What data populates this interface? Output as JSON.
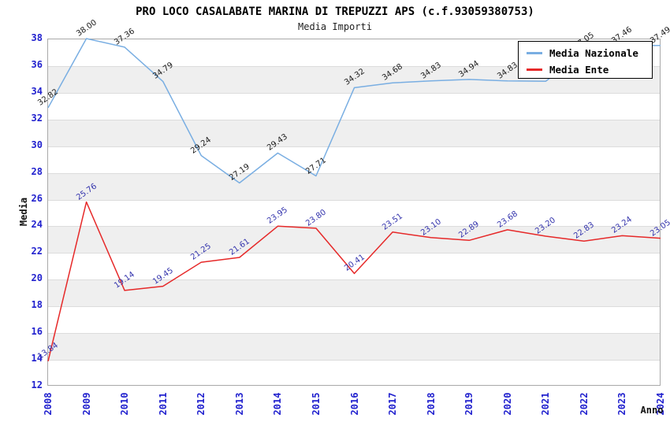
{
  "header": {
    "title": "PRO LOCO CASALABATE MARINA DI TREPUZZI APS (c.f.93059380753)",
    "subtitle": "Media Importi"
  },
  "legend": {
    "position": "top-right",
    "items": [
      {
        "label": "Media Nazionale",
        "color": "#79aee2"
      },
      {
        "label": "Media Ente",
        "color": "#e62929"
      }
    ]
  },
  "axes": {
    "y_title": "Media",
    "x_title": "Anno",
    "y_min": 12,
    "y_max": 38,
    "y_step": 2,
    "tick_color": "#2121ce"
  },
  "chart_data": {
    "type": "line",
    "title": "PRO LOCO CASALABATE MARINA DI TREPUZZI APS (c.f.93059380753)",
    "subtitle": "Media Importi",
    "xlabel": "Anno",
    "ylabel": "Media",
    "ylim": [
      12,
      38
    ],
    "grid": "horizontal gridlines every 2 units with alternating light-gray bands",
    "legend_position": "top-right",
    "x": [
      2008,
      2009,
      2010,
      2011,
      2012,
      2013,
      2014,
      2015,
      2016,
      2017,
      2018,
      2019,
      2020,
      2021,
      2022,
      2023,
      2024
    ],
    "series": [
      {
        "name": "Media Nazionale",
        "color": "#79aee2",
        "label_color": "#1a1a1a",
        "values": [
          32.82,
          38.0,
          37.36,
          34.79,
          29.24,
          27.19,
          29.43,
          27.71,
          34.32,
          34.68,
          34.83,
          34.94,
          34.83,
          34.8,
          37.05,
          37.46,
          37.49
        ],
        "point_labels": [
          "32.82",
          "38.00",
          "37.36",
          "34.79",
          "29.24",
          "27.19",
          "29.43",
          "27.71",
          "34.32",
          "34.68",
          "34.83",
          "34.94",
          "34.83",
          "",
          "37.05",
          "37.46",
          "37.49"
        ],
        "note": "2021 point label hidden behind legend (value estimated from line position); 2023 label partially hidden by legend"
      },
      {
        "name": "Media Ente",
        "color": "#e62929",
        "label_color": "#3232ac",
        "values": [
          13.84,
          25.76,
          19.14,
          19.45,
          21.25,
          21.61,
          23.95,
          23.8,
          20.41,
          23.51,
          23.1,
          22.89,
          23.68,
          23.2,
          22.83,
          23.24,
          23.05
        ],
        "point_labels": [
          "13.84",
          "25.76",
          "19.14",
          "19.45",
          "21.25",
          "21.61",
          "23.95",
          "23.80",
          "20.41",
          "23.51",
          "23.10",
          "22.89",
          "23.68",
          "23.20",
          "22.83",
          "23.24",
          "23.05"
        ]
      }
    ]
  }
}
